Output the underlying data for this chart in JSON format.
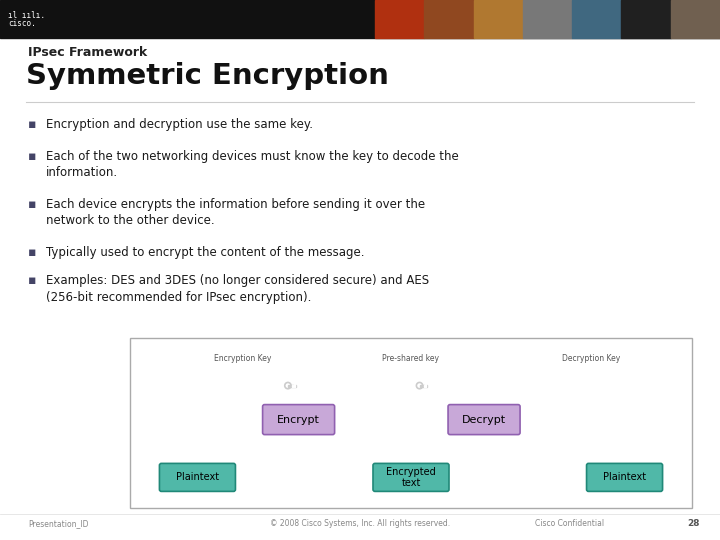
{
  "slide_title_small": "IPsec Framework",
  "slide_title_large": "Symmetric Encryption",
  "bullets": [
    "Encryption and decryption use the same key.",
    "Each of the two networking devices must know the key to decode the\ninformation.",
    "Each device encrypts the information before sending it over the\nnetwork to the other device.",
    "Typically used to encrypt the content of the message.",
    "Examples: DES and 3DES (no longer considered secure) and AES\n(256-bit recommended for IPsec encryption)."
  ],
  "footer_left": "Presentation_ID",
  "footer_center": "© 2008 Cisco Systems, Inc. All rights reserved.",
  "footer_right": "Cisco Confidential",
  "slide_num": "28",
  "header_bg": "#111111",
  "slide_bg": "#ffffff",
  "bullet_color": "#1a1a1a",
  "photo_colors": [
    "#b03010",
    "#904820",
    "#b07830",
    "#787878",
    "#406880",
    "#202020",
    "#706050"
  ],
  "diagram": {
    "encrypt_box_color": "#c8a8d8",
    "encrypt_box_border": "#9060b0",
    "plaintext_box_color": "#50b8a8",
    "plaintext_box_border": "#208878",
    "key_label_left": "Encryption Key",
    "key_label_mid": "Pre-shared key",
    "key_label_right": "Decryption Key",
    "encrypt_label": "Encrypt",
    "decrypt_label": "Decrypt",
    "plaintext_left": "Plaintext",
    "plaintext_right": "Plaintext",
    "enc_text": "Encrypted\ntext"
  }
}
